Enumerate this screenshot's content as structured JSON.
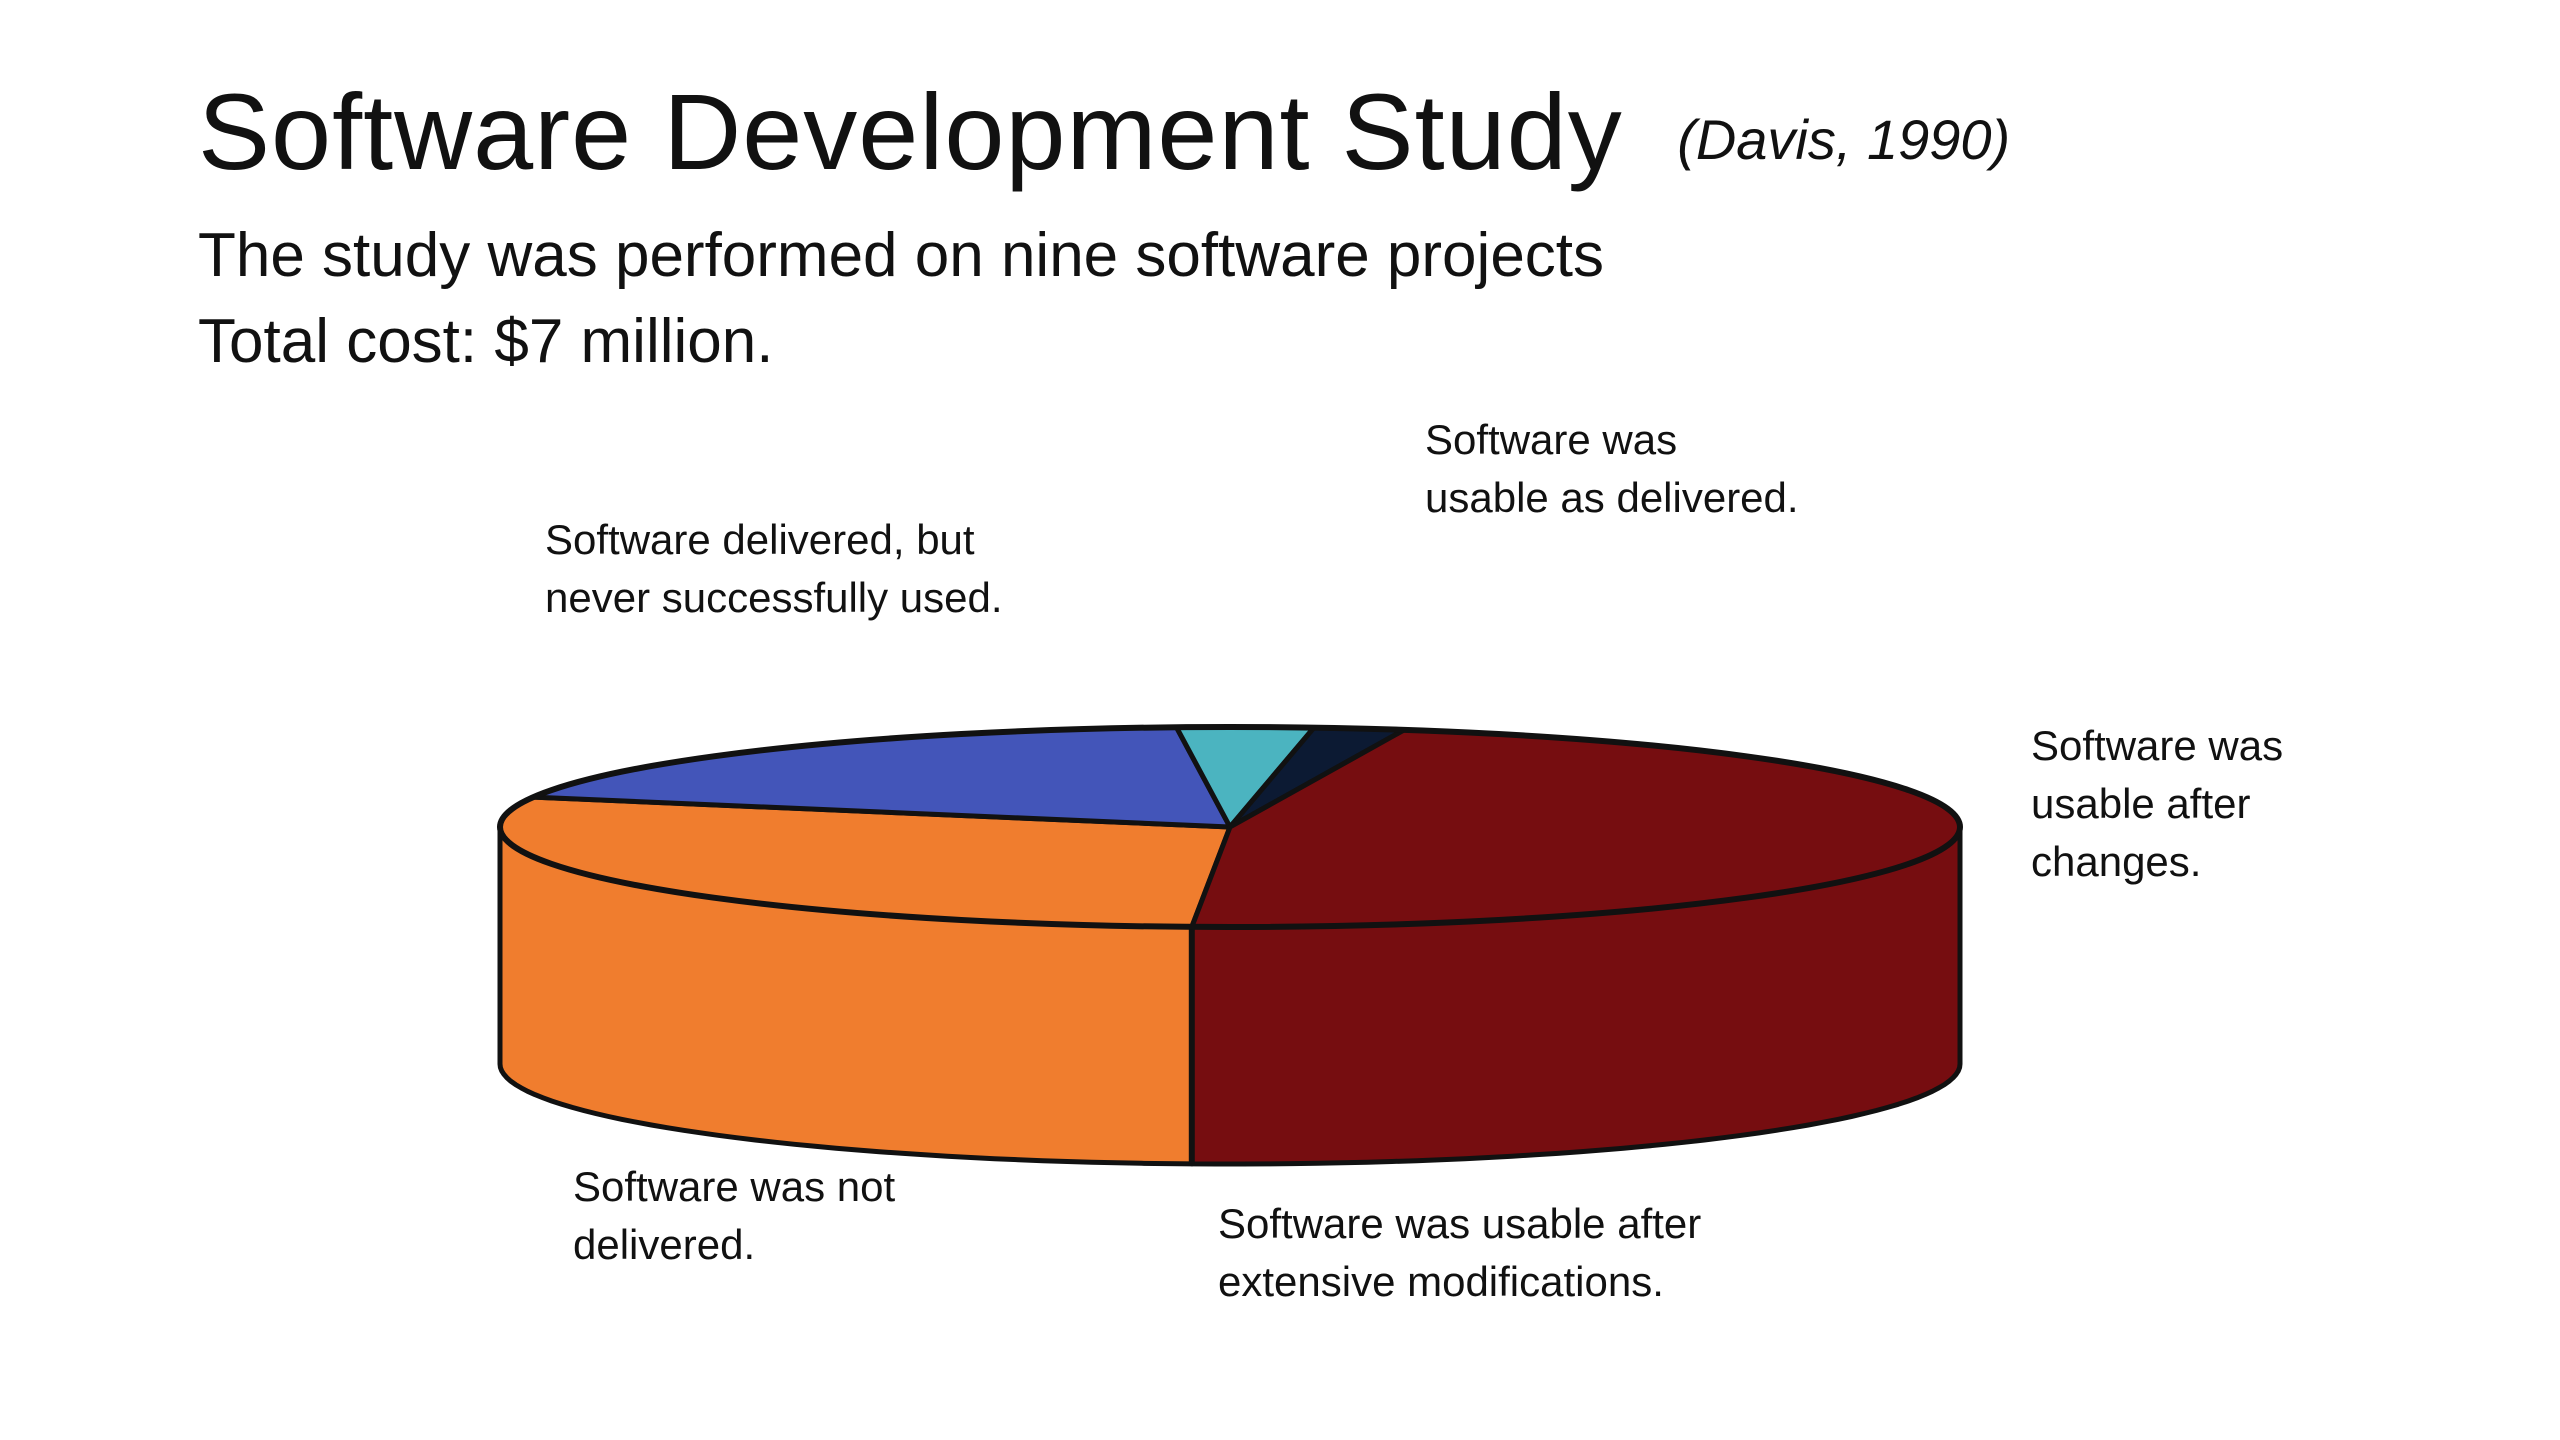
{
  "slide": {
    "title": "Software Development Study",
    "citation": "(Davis, 1990)",
    "line1": "The study was performed on nine software projects",
    "line2": "Total cost: $7 million."
  },
  "chart_data": {
    "type": "pie",
    "title": "",
    "slices": [
      {
        "label": "Software was not\ndelivered.",
        "value": 29,
        "color": "#F07D2E"
      },
      {
        "label": "Software was usable after\nextensive modifications.",
        "value": 19,
        "color": "#4355B9"
      },
      {
        "label": "Software was\nusable after\nchanges.",
        "value": 3,
        "color": "#4BB4C0"
      },
      {
        "label": "Software was\nusable as delivered.",
        "value": 2,
        "color": "#0C1A33"
      },
      {
        "label": "Software delivered, but\nnever successfully used.",
        "value": 47,
        "color": "#760D10"
      }
    ]
  }
}
